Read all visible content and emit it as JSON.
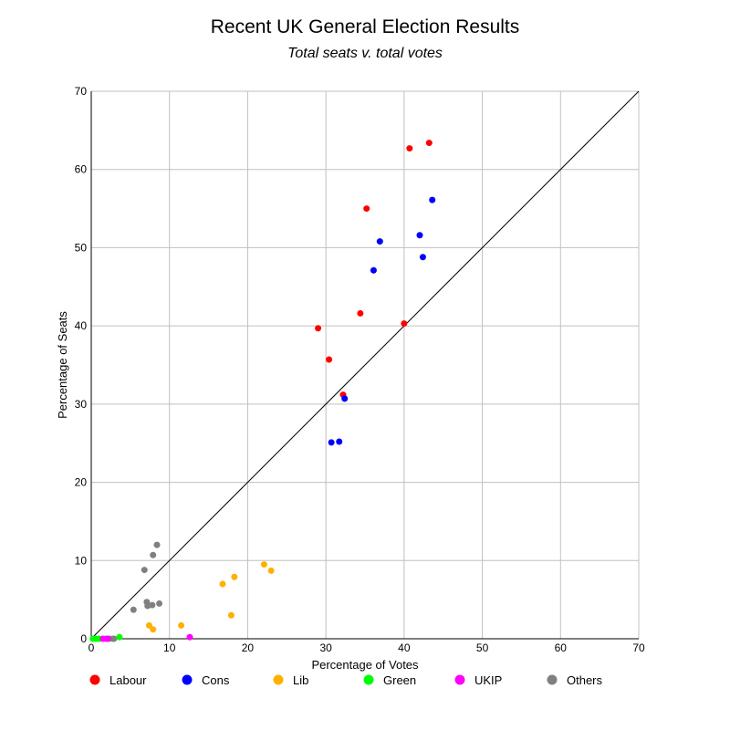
{
  "chart_data": {
    "type": "scatter",
    "title": "Recent UK General Election Results",
    "subtitle": "Total seats v. total votes",
    "xlabel": "Percentage of Votes",
    "ylabel": "Percentage of Seats",
    "xlim": [
      0,
      70
    ],
    "ylim": [
      0,
      70
    ],
    "xticks": [
      "0",
      "10",
      "20",
      "30",
      "40",
      "50",
      "60",
      "70"
    ],
    "yticks": [
      "0",
      "10",
      "20",
      "30",
      "40",
      "50",
      "60",
      "70"
    ],
    "grid": true,
    "reference_line": "y = x",
    "legend_position": "bottom",
    "series": [
      {
        "name": "Labour",
        "color": "#ff0000",
        "points": [
          [
            29.0,
            39.7
          ],
          [
            30.4,
            35.7
          ],
          [
            32.2,
            31.2
          ],
          [
            34.4,
            41.6
          ],
          [
            35.2,
            55.0
          ],
          [
            40.0,
            40.3
          ],
          [
            40.7,
            62.7
          ],
          [
            43.2,
            63.4
          ]
        ]
      },
      {
        "name": "Cons",
        "color": "#0000ff",
        "points": [
          [
            30.7,
            25.1
          ],
          [
            31.7,
            25.2
          ],
          [
            32.4,
            30.7
          ],
          [
            36.1,
            47.1
          ],
          [
            36.9,
            50.8
          ],
          [
            42.0,
            51.6
          ],
          [
            42.4,
            48.8
          ],
          [
            43.6,
            56.1
          ]
        ]
      },
      {
        "name": "Lib",
        "color": "#ffb000",
        "points": [
          [
            7.4,
            1.7
          ],
          [
            7.9,
            1.2
          ],
          [
            11.5,
            1.7
          ],
          [
            16.8,
            7.0
          ],
          [
            17.9,
            3.0
          ],
          [
            18.3,
            7.9
          ],
          [
            22.1,
            9.5
          ],
          [
            23.0,
            8.7
          ]
        ]
      },
      {
        "name": "Green",
        "color": "#00ff00",
        "points": [
          [
            0.2,
            0.0
          ],
          [
            0.6,
            0.0
          ],
          [
            1.0,
            0.0
          ],
          [
            2.7,
            0.0
          ],
          [
            3.6,
            0.2
          ]
        ]
      },
      {
        "name": "UKIP",
        "color": "#ff00ff",
        "points": [
          [
            1.5,
            0.0
          ],
          [
            1.9,
            0.0
          ],
          [
            2.2,
            0.0
          ],
          [
            12.6,
            0.2
          ]
        ]
      },
      {
        "name": "Others",
        "color": "#808080",
        "points": [
          [
            5.4,
            3.7
          ],
          [
            7.1,
            4.7
          ],
          [
            7.2,
            4.2
          ],
          [
            7.8,
            4.3
          ],
          [
            8.7,
            4.5
          ],
          [
            6.8,
            8.8
          ],
          [
            7.9,
            10.7
          ],
          [
            8.4,
            12.0
          ],
          [
            2.9,
            0.0
          ]
        ]
      }
    ]
  }
}
